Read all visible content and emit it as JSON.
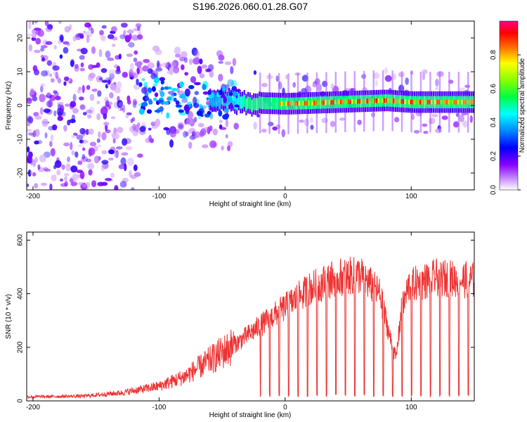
{
  "page_title": "S196.2026.060.01.28.G07",
  "chart_data": [
    {
      "type": "heatmap",
      "title": "S196.2026.060.01.28.G07",
      "xlabel": "Height of straight line (km)",
      "ylabel": "Frequency (Hz)",
      "xlim": [
        -205,
        150
      ],
      "ylim": [
        -25,
        25
      ],
      "xticks": [
        -200,
        -100,
        0,
        100
      ],
      "yticks": [
        -20,
        -10,
        0,
        10,
        20
      ],
      "colorbar": {
        "label": "Normalized spectral amplitude",
        "range": [
          0,
          1
        ],
        "ticks": [
          "0.0",
          "0.2",
          "0.4",
          "0.6",
          "0.8"
        ],
        "colors": [
          "#ffffff",
          "#8800ff",
          "#0000ff",
          "#00ffff",
          "#00ff00",
          "#ffff00",
          "#ff0000",
          "#ff00aa"
        ]
      },
      "description_series": {
        "band_center_hz": [
          {
            "x": -205,
            "y": 3
          },
          {
            "x": -100,
            "y": 3
          },
          {
            "x": -40,
            "y": 1
          },
          {
            "x": 0,
            "y": 0.5
          },
          {
            "x": 80,
            "y": 1.5
          },
          {
            "x": 100,
            "y": 1
          },
          {
            "x": 150,
            "y": 1
          }
        ],
        "peak_amplitude": [
          {
            "x": -205,
            "y": 0.15
          },
          {
            "x": -100,
            "y": 0.3
          },
          {
            "x": -40,
            "y": 0.45
          },
          {
            "x": 0,
            "y": 0.9
          },
          {
            "x": 100,
            "y": 0.95
          },
          {
            "x": 150,
            "y": 0.85
          }
        ]
      }
    },
    {
      "type": "line",
      "xlabel": "Height of straight line (km)",
      "ylabel": "SNR (10 * v/v)",
      "xlim": [
        -205,
        150
      ],
      "ylim": [
        0,
        630
      ],
      "xticks": [
        -200,
        -100,
        0,
        100
      ],
      "yticks": [
        0,
        200,
        400,
        600
      ],
      "color": "#ee3333",
      "series": [
        {
          "name": "SNR",
          "envelope": [
            {
              "x": -205,
              "y": 15
            },
            {
              "x": -160,
              "y": 18
            },
            {
              "x": -130,
              "y": 30
            },
            {
              "x": -100,
              "y": 55
            },
            {
              "x": -80,
              "y": 90
            },
            {
              "x": -60,
              "y": 150
            },
            {
              "x": -40,
              "y": 210
            },
            {
              "x": -20,
              "y": 280
            },
            {
              "x": 0,
              "y": 350
            },
            {
              "x": 20,
              "y": 420
            },
            {
              "x": 40,
              "y": 460
            },
            {
              "x": 60,
              "y": 470
            },
            {
              "x": 75,
              "y": 400
            },
            {
              "x": 85,
              "y": 200
            },
            {
              "x": 88,
              "y": 160
            },
            {
              "x": 92,
              "y": 330
            },
            {
              "x": 98,
              "y": 430
            },
            {
              "x": 120,
              "y": 460
            },
            {
              "x": 150,
              "y": 450
            }
          ],
          "noise_amplitude": 0.12,
          "dropouts_start_x": -20,
          "dropout_spacing_km": 7.5,
          "dropout_level": 15
        }
      ]
    }
  ]
}
